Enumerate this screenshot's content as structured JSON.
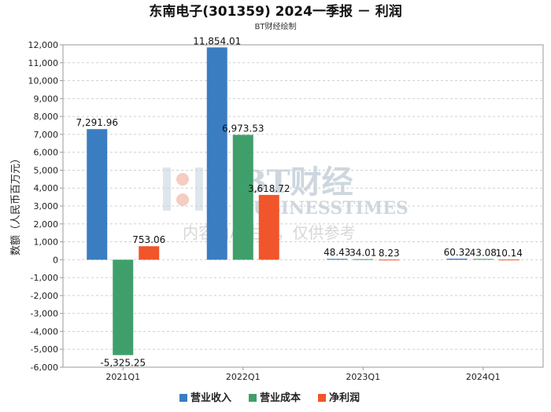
{
  "chart_data": {
    "type": "bar",
    "title": "东南电子(301359) 2024一季报 － 利润",
    "subtitle": "BT财经绘制",
    "ylabel": "数额（人民币百万元）",
    "categories": [
      "2021Q1",
      "2022Q1",
      "2023Q1",
      "2024Q1"
    ],
    "series": [
      {
        "name": "营业收入",
        "color": "#3a7dc0",
        "values": [
          7291.96,
          11854.01,
          48.43,
          60.32
        ],
        "labels": [
          "7,291.96",
          "11,854.01",
          "48.43",
          "60.32"
        ]
      },
      {
        "name": "营业成本",
        "color": "#3f9f6a",
        "values": [
          -5325.25,
          6973.53,
          34.01,
          43.08
        ],
        "labels": [
          "-5,325.25",
          "6,973.53",
          "34.01",
          "43.08"
        ]
      },
      {
        "name": "净利润",
        "color": "#f0552b",
        "values": [
          753.06,
          3618.72,
          8.23,
          10.14
        ],
        "labels": [
          "753.06",
          "3,618.72",
          "8.23",
          "10.14"
        ]
      }
    ],
    "ylim": [
      -6000,
      12000
    ],
    "ytick_labels": [
      "-6,000",
      "-5,000",
      "-4,000",
      "-3,000",
      "-2,000",
      "-1,000",
      "0",
      "1,000",
      "2,000",
      "3,000",
      "4,000",
      "5,000",
      "6,000",
      "7,000",
      "8,000",
      "9,000",
      "10,000",
      "11,000",
      "12,000"
    ],
    "grid": true,
    "legend_position": "bottom"
  },
  "watermark": {
    "brand": "BT财经",
    "brand_en": "BUSINESSTIMES",
    "notice": "内容由AI生成，仅供参考"
  }
}
